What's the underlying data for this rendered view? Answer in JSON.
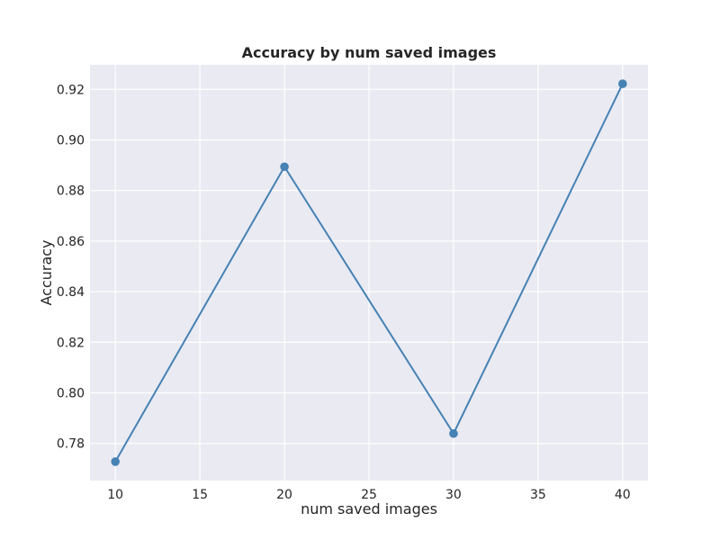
{
  "chart_data": {
    "type": "line",
    "title": "Accuracy by num saved images",
    "xlabel": "num saved images",
    "ylabel": "Accuracy",
    "x": [
      10,
      20,
      30,
      40
    ],
    "series": [
      {
        "values": [
          0.7728,
          0.8894,
          0.7839,
          0.9222
        ]
      }
    ],
    "xlim": [
      8.5,
      41.5
    ],
    "ylim": [
      0.7653,
      0.9297
    ],
    "xticks": [
      10,
      15,
      20,
      25,
      30,
      35,
      40
    ],
    "xtick_labels": [
      "10",
      "15",
      "20",
      "25",
      "30",
      "35",
      "40"
    ],
    "yticks": [
      0.78,
      0.8,
      0.82,
      0.84,
      0.86,
      0.88,
      0.9,
      0.92
    ],
    "ytick_labels": [
      "0.78",
      "0.80",
      "0.82",
      "0.84",
      "0.86",
      "0.88",
      "0.90",
      "0.92"
    ],
    "grid": true,
    "markers": true,
    "colors": {
      "line": "#4682b4",
      "plot_background": "#eaeaf2",
      "grid": "#ffffff"
    }
  }
}
